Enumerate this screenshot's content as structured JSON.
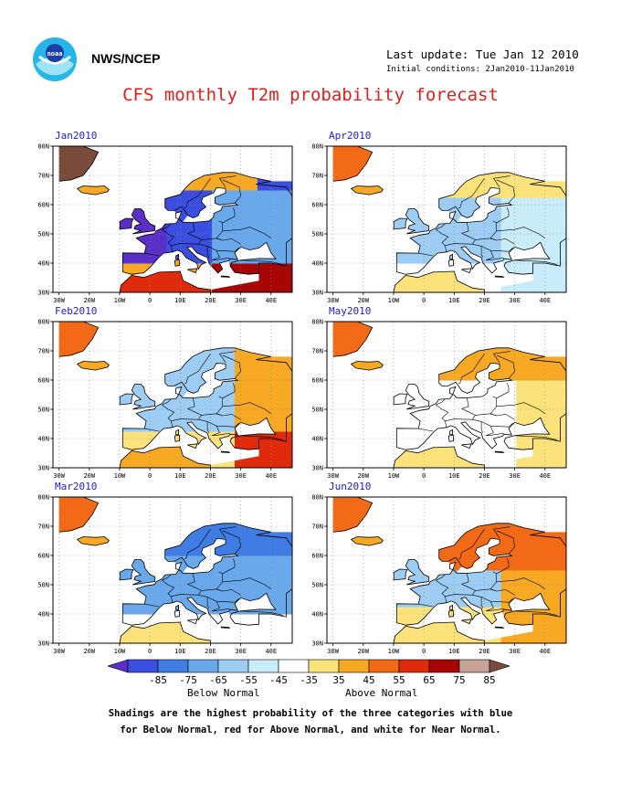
{
  "header": {
    "org_label": "NWS/NCEP",
    "last_update": "Last update: Tue Jan 12 2010",
    "initial_conditions": "Initial conditions: 2Jan2010-11Jan2010",
    "title": "CFS monthly T2m probability forecast"
  },
  "logo": {
    "text": "noaa",
    "icon": "noaa-logo-icon"
  },
  "map_axes": {
    "lon_ticks": [
      "30W",
      "20W",
      "10W",
      "0",
      "10E",
      "20E",
      "30E",
      "40E"
    ],
    "lat_ticks": [
      "80N",
      "70N",
      "60N",
      "50N",
      "40N",
      "30N"
    ]
  },
  "panels": [
    {
      "month": "Jan2010",
      "pattern": "cold-west-warm-edges"
    },
    {
      "month": "Apr2010",
      "pattern": "weak-mixed"
    },
    {
      "month": "Feb2010",
      "pattern": "mixed-warm-east"
    },
    {
      "month": "May2010",
      "pattern": "weak-warm-north"
    },
    {
      "month": "Mar2010",
      "pattern": "cold-broad"
    },
    {
      "month": "Jun2010",
      "pattern": "warm-north-east"
    }
  ],
  "colorbar": {
    "labels": [
      "-85",
      "-75",
      "-65",
      "-55",
      "-45",
      "-35",
      "35",
      "45",
      "55",
      "65",
      "75",
      "85"
    ],
    "colors": [
      "#5a2fc8",
      "#3a4ee0",
      "#3f7ce4",
      "#6aa8ec",
      "#9dcdf4",
      "#c8ecfa",
      "#ffffff",
      "#fce27a",
      "#f7a924",
      "#f36a16",
      "#e02a0c",
      "#a80606",
      "#c9a297",
      "#7a4a3a"
    ],
    "below_label": "Below Normal",
    "above_label": "Above Normal"
  },
  "footnote": {
    "line1": "Shadings are the highest probability of the three categories with blue",
    "line2": "for Below Normal, red for Above Normal, and white for Near Normal."
  }
}
